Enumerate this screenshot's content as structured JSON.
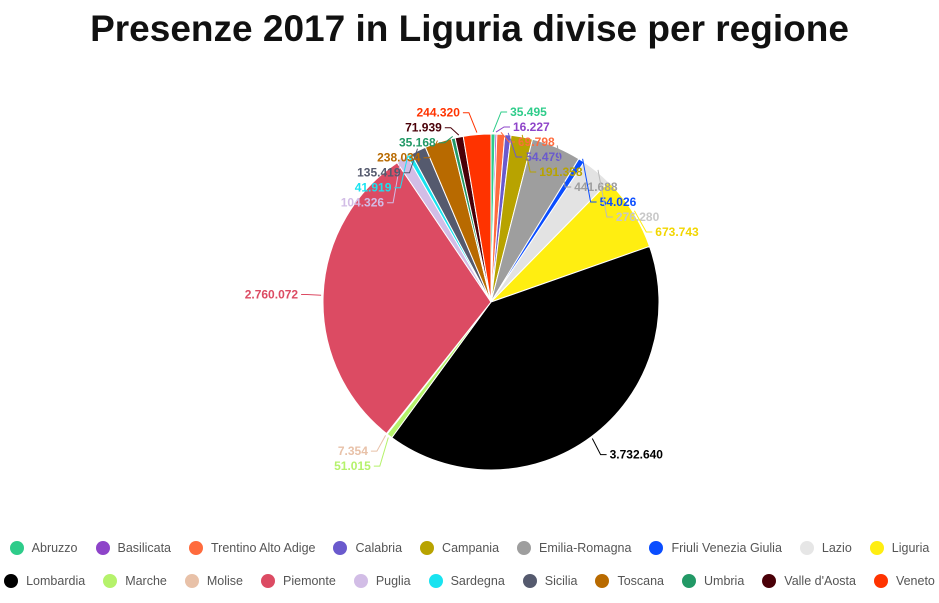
{
  "chart_data": {
    "type": "pie",
    "title": "Presenze 2017 in Liguria divise per regione",
    "slices": [
      {
        "name": "Abruzzo",
        "value": 35495,
        "label": "35.495",
        "color": "#2ecc8a"
      },
      {
        "name": "Basilicata",
        "value": 16227,
        "label": "16.227",
        "color": "#8e44c9"
      },
      {
        "name": "Trentino Alto Adige",
        "value": 69798,
        "label": "69.798",
        "color": "#ff6b3d"
      },
      {
        "name": "Calabria",
        "value": 54479,
        "label": "54.479",
        "color": "#6a5acd"
      },
      {
        "name": "Campania",
        "value": 191358,
        "label": "191.358",
        "color": "#b8a300"
      },
      {
        "name": "Emilia-Romagna",
        "value": 441688,
        "label": "441.688",
        "color": "#9e9e9e"
      },
      {
        "name": "Friuli Venezia Giulia",
        "value": 54026,
        "label": "54.026",
        "color": "#0a4dff"
      },
      {
        "name": "Lazio",
        "value": 276280,
        "label": "276.280",
        "color": "#e3e3e3"
      },
      {
        "name": "Liguria",
        "value": 673743,
        "label": "673.743",
        "color": "#ffee11"
      },
      {
        "name": "Lombardia",
        "value": 3732640,
        "label": "3.732.640",
        "color": "#000000"
      },
      {
        "name": "Marche",
        "value": 51015,
        "label": "51.015",
        "color": "#b5f26b"
      },
      {
        "name": "Molise",
        "value": 7354,
        "label": "7.354",
        "color": "#e8c1a8"
      },
      {
        "name": "Piemonte",
        "value": 2760072,
        "label": "2.760.072",
        "color": "#dc4b63"
      },
      {
        "name": "Puglia",
        "value": 104326,
        "label": "104.326",
        "color": "#d2bde6"
      },
      {
        "name": "Sardegna",
        "value": 41919,
        "label": "41.919",
        "color": "#19e3f0"
      },
      {
        "name": "Sicilia",
        "value": 135419,
        "label": "135.419",
        "color": "#555a6e"
      },
      {
        "name": "Toscana",
        "value": 238034,
        "label": "238.034",
        "color": "#b86a00"
      },
      {
        "name": "Umbria",
        "value": 35168,
        "label": "35.168",
        "color": "#229966"
      },
      {
        "name": "Valle d'Aosta",
        "value": 71939,
        "label": "71.939",
        "color": "#4a0008"
      },
      {
        "name": "Veneto",
        "value": 244320,
        "label": "244.320",
        "color": "#ff3300"
      }
    ],
    "legend": {
      "placement": "bottom",
      "rows": [
        [
          "Abruzzo",
          "Basilicata",
          "Trentino Alto Adige",
          "Calabria",
          "Campania",
          "Emilia-Romagna",
          "Friuli Venezia Giulia",
          "Lazio",
          "Liguria"
        ],
        [
          "Lombardia",
          "Marche",
          "Molise",
          "Piemonte",
          "Puglia",
          "Sardegna",
          "Sicilia",
          "Toscana",
          "Umbria",
          "Valle d'Aosta",
          "Veneto"
        ]
      ]
    }
  }
}
